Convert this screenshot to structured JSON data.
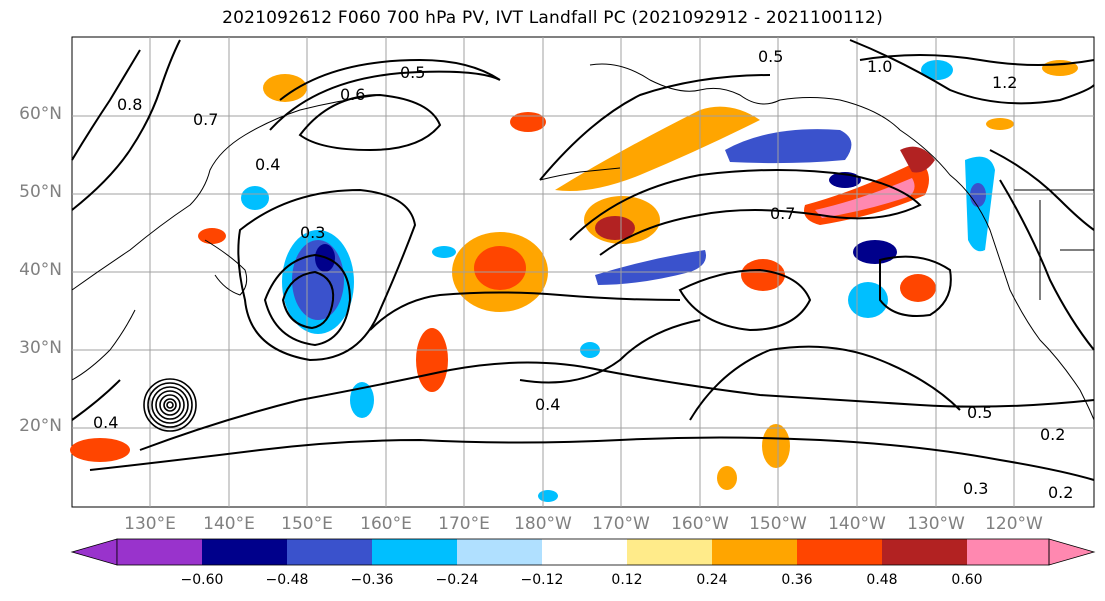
{
  "title": "2021092612 F060 700 hPa PV, IVT Landfall PC (2021092912 - 2021100112)",
  "latitude_labels": [
    "60°N",
    "50°N",
    "40°N",
    "30°N",
    "20°N"
  ],
  "longitude_labels": [
    "130°E",
    "140°E",
    "150°E",
    "160°E",
    "170°E",
    "180°W",
    "170°W",
    "160°W",
    "150°W",
    "140°W",
    "130°W",
    "120°W"
  ],
  "colorbar": {
    "ticks": [
      "−0.60",
      "−0.48",
      "−0.36",
      "−0.24",
      "−0.12",
      "0.12",
      "0.24",
      "0.36",
      "0.48",
      "0.60"
    ],
    "colors": [
      "#9933cc",
      "#00008b",
      "#3a52cc",
      "#00bfff",
      "#b0e0ff",
      "#ffffff",
      "#ffeb8a",
      "#ffa500",
      "#ff4500",
      "#b22222",
      "#ff88b0"
    ]
  },
  "contour_labels": [
    "0.5",
    "0.6",
    "0.7",
    "0.8",
    "1.0",
    "0.4",
    "0.3",
    "0.2",
    "1.2"
  ],
  "colors": {
    "graticule": "#a0a0a0",
    "contour": "#000000",
    "coast": "#000000"
  }
}
